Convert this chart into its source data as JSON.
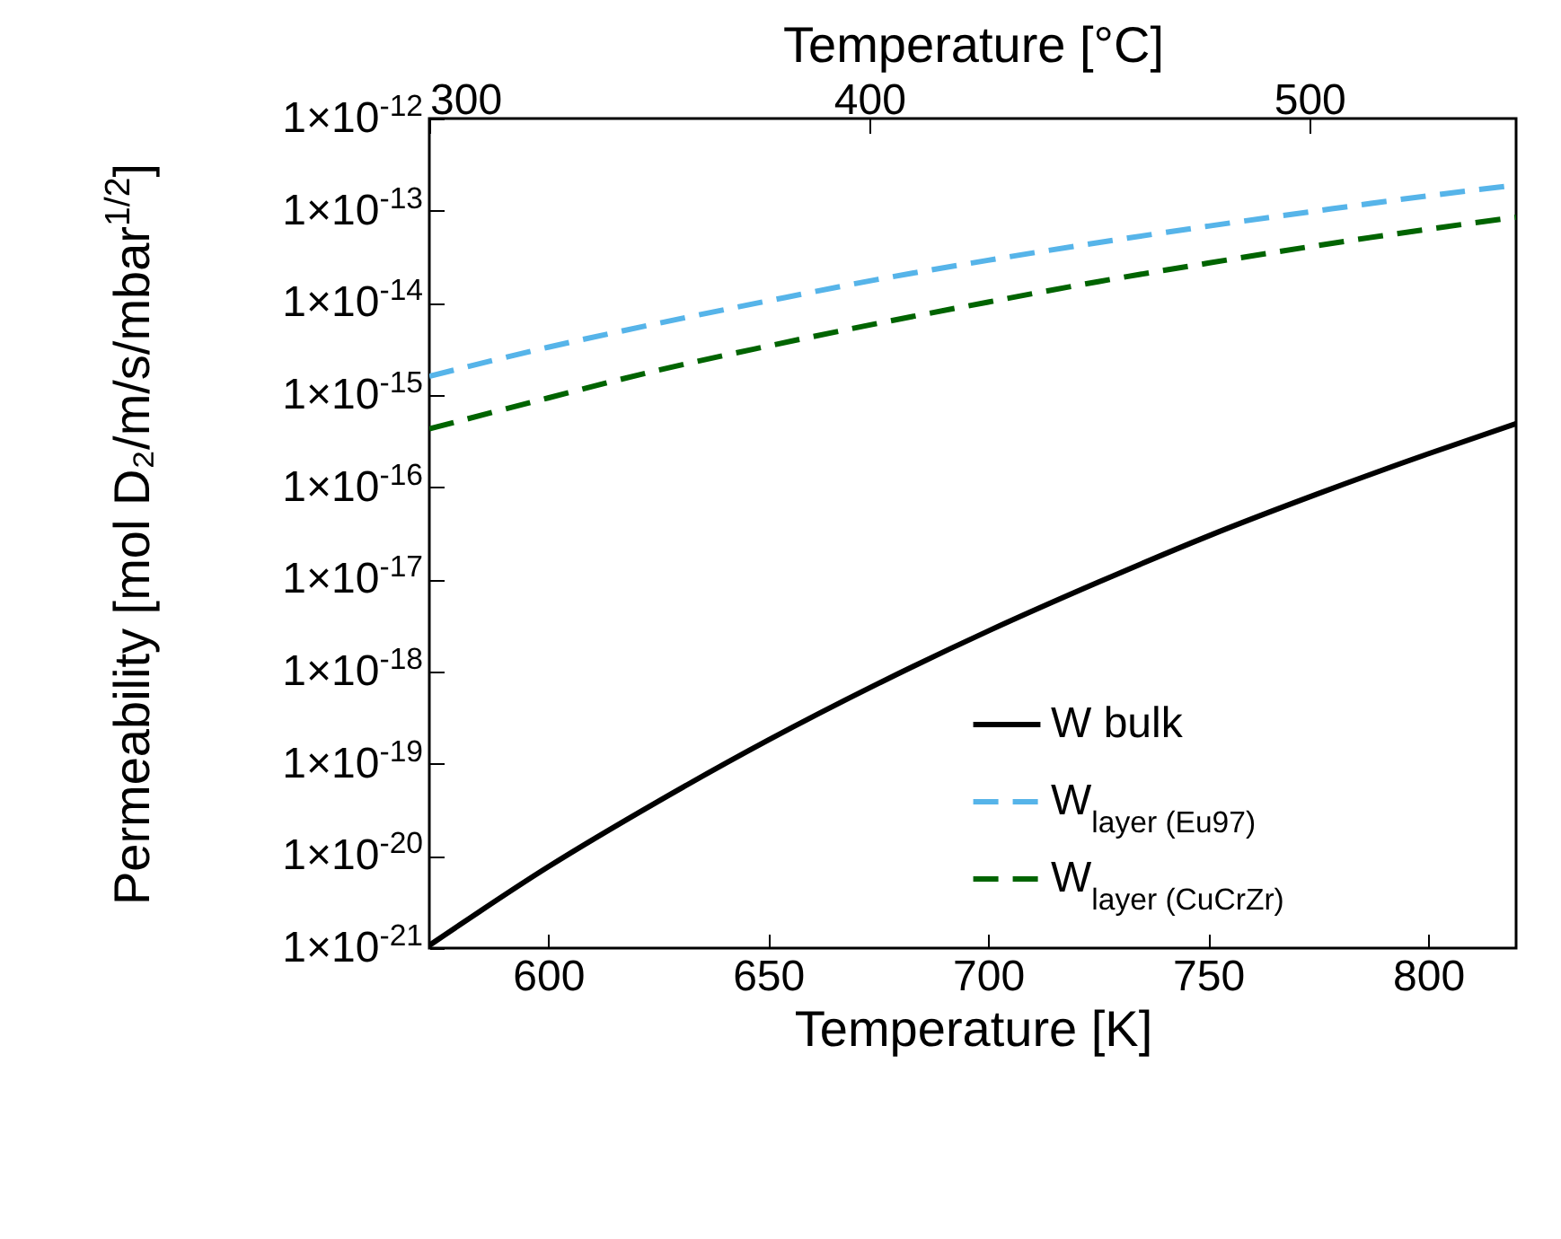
{
  "chart_data": {
    "type": "line",
    "xlabel": "Temperature [K]",
    "x2label": "Temperature [°C]",
    "ylabel": "Permeability [mol D₂/m/s/mbar$^{1/2}$]",
    "x": [
      573,
      600,
      625,
      650,
      675,
      700,
      725,
      750,
      775,
      800,
      820
    ],
    "series": [
      {
        "name": "W bulk",
        "color": "#000000",
        "line_style": "solid",
        "values": [
          1.07e-21,
          7.6e-21,
          3.9e-20,
          1.8e-19,
          7.4e-19,
          2.75e-18,
          9.3e-18,
          2.95e-17,
          8.5e-17,
          2.3e-16,
          4.9e-16
        ]
      },
      {
        "name": "W$_{layer (Eu97)}$",
        "color": "#56b4e9",
        "line_style": "dashed",
        "values": [
          1.6e-15,
          3.3e-15,
          6e-15,
          1.05e-14,
          1.8e-14,
          2.9e-14,
          4.5e-14,
          6.8e-14,
          1e-13,
          1.45e-13,
          1.9e-13
        ]
      },
      {
        "name": "W$_{layer (CuCrZr)}$",
        "color": "#006400",
        "line_style": "dashed",
        "values": [
          4.3e-16,
          9.3e-16,
          1.86e-15,
          3.4e-15,
          6e-15,
          1.02e-14,
          1.7e-14,
          2.7e-14,
          4.2e-14,
          6.3e-14,
          8.5e-14
        ]
      }
    ],
    "xlim": [
      573,
      820
    ],
    "xticks": [
      600,
      650,
      700,
      750,
      800
    ],
    "x2lim": [
      300,
      547
    ],
    "x2ticks": [
      300,
      400,
      500
    ],
    "log": "y",
    "ylim": [
      1e-21,
      1e-12
    ],
    "yticks": [
      {
        "value": 1e-21,
        "label": "1×10$^{-21}$"
      },
      {
        "value": 1e-20,
        "label": "1×10$^{-20}$"
      },
      {
        "value": 1e-19,
        "label": "1×10$^{-19}$"
      },
      {
        "value": 1e-18,
        "label": "1×10$^{-18}$"
      },
      {
        "value": 1e-17,
        "label": "1×10$^{-17}$"
      },
      {
        "value": 1e-16,
        "label": "1×10$^{-16}$"
      },
      {
        "value": 1e-15,
        "label": "1×10$^{-15}$"
      },
      {
        "value": 1e-14,
        "label": "1×10$^{-14}$"
      },
      {
        "value": 1e-13,
        "label": "1×10$^{-13}$"
      },
      {
        "value": 1e-12,
        "label": "1×10$^{-12}$"
      }
    ],
    "grid": false,
    "legend": "bottom right",
    "marker": "none"
  }
}
